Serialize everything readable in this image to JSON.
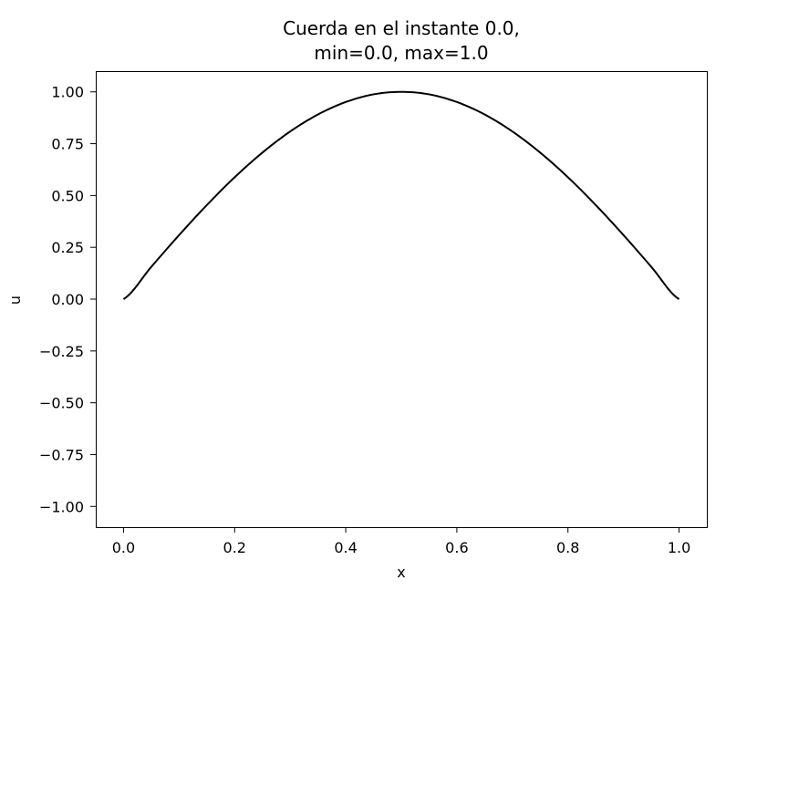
{
  "chart_data": {
    "type": "line",
    "title_line1": "Cuerda en el instante 0.0,",
    "title_line2": "min=0.0, max=1.0",
    "xlabel": "x",
    "ylabel": "u",
    "xlim": [
      -0.05,
      1.05
    ],
    "ylim": [
      -1.1,
      1.1
    ],
    "xticks": [
      0.0,
      0.2,
      0.4,
      0.6,
      0.8,
      1.0
    ],
    "xtick_labels": [
      "0.0",
      "0.2",
      "0.4",
      "0.6",
      "0.8",
      "1.0"
    ],
    "yticks": [
      1.0,
      0.75,
      0.5,
      0.25,
      0.0,
      -0.25,
      -0.5,
      -0.75,
      -1.0
    ],
    "ytick_labels": [
      "1.00",
      "0.75",
      "0.50",
      "0.25",
      "0.00",
      "−0.25",
      "−0.50",
      "−0.75",
      "−1.00"
    ],
    "grid": false,
    "line_color": "#000000",
    "series": [
      {
        "x": [
          0.0,
          0.05,
          0.1,
          0.15,
          0.2,
          0.25,
          0.3,
          0.35,
          0.4,
          0.45,
          0.5,
          0.55,
          0.6,
          0.65,
          0.7,
          0.75,
          0.8,
          0.85,
          0.9,
          0.95,
          1.0
        ],
        "values": [
          0.0,
          0.156,
          0.309,
          0.454,
          0.588,
          0.707,
          0.809,
          0.891,
          0.951,
          0.988,
          1.0,
          0.988,
          0.951,
          0.891,
          0.809,
          0.707,
          0.588,
          0.454,
          0.309,
          0.156,
          0.0
        ]
      }
    ]
  }
}
